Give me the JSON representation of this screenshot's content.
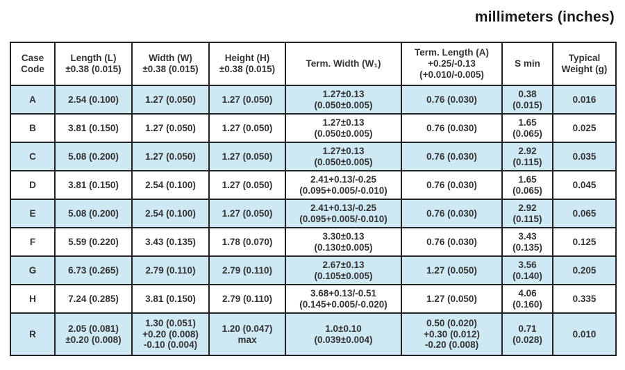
{
  "title": "millimeters (inches)",
  "colors": {
    "row_stripe": "#cee8f4",
    "border": "#222222",
    "text": "#333333",
    "title_text": "#1a1a1a"
  },
  "table": {
    "columns": [
      {
        "id": "case-code",
        "label": "Case\nCode"
      },
      {
        "id": "length",
        "label": "Length (L)\n±0.38 (0.015)"
      },
      {
        "id": "width",
        "label": "Width (W)\n±0.38 (0.015)"
      },
      {
        "id": "height",
        "label": "Height (H)\n±0.38 (0.015)"
      },
      {
        "id": "term-width",
        "label": "Term. Width (W₁)"
      },
      {
        "id": "term-length",
        "label": "Term. Length (A)\n+0.25/-0.13\n(+0.010/-0.005)"
      },
      {
        "id": "s-min",
        "label": "S min"
      },
      {
        "id": "typical-weight",
        "label": "Typical\nWeight (g)"
      }
    ],
    "rows": [
      {
        "case_code": "A",
        "shaded": true,
        "cells": [
          "2.54 (0.100)",
          "1.27 (0.050)",
          "1.27 (0.050)",
          "1.27±0.13\n(0.050±0.005)",
          "0.76 (0.030)",
          "0.38\n(0.015)",
          "0.016"
        ]
      },
      {
        "case_code": "B",
        "shaded": false,
        "cells": [
          "3.81 (0.150)",
          "1.27 (0.050)",
          "1.27 (0.050)",
          "1.27±0.13\n(0.050±0.005)",
          "0.76 (0.030)",
          "1.65\n(0.065)",
          "0.025"
        ]
      },
      {
        "case_code": "C",
        "shaded": true,
        "cells": [
          "5.08 (0.200)",
          "1.27 (0.050)",
          "1.27 (0.050)",
          "1.27±0.13\n(0.050±0.005)",
          "0.76 (0.030)",
          "2.92\n(0.115)",
          "0.035"
        ]
      },
      {
        "case_code": "D",
        "shaded": false,
        "cells": [
          "3.81 (0.150)",
          "2.54 (0.100)",
          "1.27 (0.050)",
          "2.41+0.13/-0.25\n(0.095+0.005/-0.010)",
          "0.76 (0.030)",
          "1.65\n(0.065)",
          "0.045"
        ]
      },
      {
        "case_code": "E",
        "shaded": true,
        "cells": [
          "5.08 (0.200)",
          "2.54 (0.100)",
          "1.27 (0.050)",
          "2.41+0.13/-0.25\n(0.095+0.005/-0.010)",
          "0.76 (0.030)",
          "2.92\n(0.115)",
          "0.065"
        ]
      },
      {
        "case_code": "F",
        "shaded": false,
        "cells": [
          "5.59 (0.220)",
          "3.43 (0.135)",
          "1.78 (0.070)",
          "3.30±0.13\n(0.130±0.005)",
          "0.76 (0.030)",
          "3.43\n(0.135)",
          "0.125"
        ]
      },
      {
        "case_code": "G",
        "shaded": true,
        "cells": [
          "6.73 (0.265)",
          "2.79 (0.110)",
          "2.79 (0.110)",
          "2.67±0.13\n(0.105±0.005)",
          "1.27 (0.050)",
          "3.56\n(0.140)",
          "0.205"
        ]
      },
      {
        "case_code": "H",
        "shaded": false,
        "cells": [
          "7.24 (0.285)",
          "3.81 (0.150)",
          "2.79 (0.110)",
          "3.68+0.13/-0.51\n(0.145+0.005/-0.020)",
          "1.27 (0.050)",
          "4.06\n(0.160)",
          "0.335"
        ]
      },
      {
        "case_code": "R",
        "shaded": true,
        "cells": [
          "2.05 (0.081)\n±0.20 (0.008)",
          "1.30 (0.051)\n+0.20 (0.008)\n-0.10 (0.004)",
          "1.20 (0.047)\nmax",
          "1.0±0.10\n(0.039±0.004)",
          "0.50 (0.020)\n+0.30 (0.012)\n-0.20 (0.008)",
          "0.71\n(0.028)",
          "0.010"
        ]
      }
    ]
  }
}
